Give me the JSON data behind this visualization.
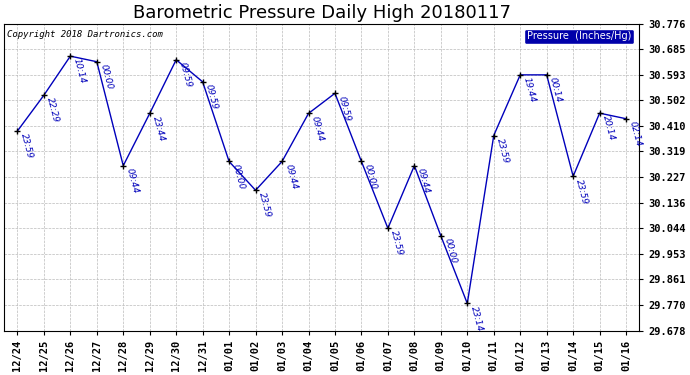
{
  "title": "Barometric Pressure Daily High 20180117",
  "copyright": "Copyright 2018 Dartronics.com",
  "legend_label": "Pressure  (Inches/Hg)",
  "background_color": "#ffffff",
  "plot_bg_color": "#ffffff",
  "line_color": "#0000bb",
  "marker_color": "#000000",
  "grid_color": "#bbbbbb",
  "x_labels": [
    "12/24",
    "12/25",
    "12/26",
    "12/27",
    "12/28",
    "12/29",
    "12/30",
    "12/31",
    "01/01",
    "01/02",
    "01/03",
    "01/04",
    "01/05",
    "01/06",
    "01/07",
    "01/08",
    "01/09",
    "01/10",
    "01/11",
    "01/12",
    "01/13",
    "01/14",
    "01/15",
    "01/16"
  ],
  "y_values": [
    30.392,
    30.52,
    30.66,
    30.64,
    30.268,
    30.455,
    30.647,
    30.568,
    30.283,
    30.18,
    30.283,
    30.455,
    30.527,
    30.283,
    30.044,
    30.268,
    30.017,
    29.775,
    30.376,
    30.593,
    30.593,
    30.23,
    30.456,
    30.436
  ],
  "time_labels": [
    "23:59",
    "22:29",
    "10:14",
    "00:00",
    "09:44",
    "23:44",
    "09:59",
    "09:59",
    "00:00",
    "23:59",
    "09:44",
    "09:44",
    "09:59",
    "00:00",
    "23:59",
    "09:44",
    "00:00",
    "23:14",
    "23:59",
    "19:44",
    "00:14",
    "23:59",
    "20:14",
    "02:14"
  ],
  "ylim_min": 29.678,
  "ylim_max": 30.776,
  "yticks": [
    30.776,
    30.685,
    30.593,
    30.502,
    30.41,
    30.319,
    30.227,
    30.136,
    30.044,
    29.953,
    29.861,
    29.77,
    29.678
  ],
  "title_fontsize": 13,
  "label_fontsize": 6.5,
  "tick_fontsize": 7.5,
  "legend_bg": "#0000aa",
  "legend_fg": "#ffffff"
}
